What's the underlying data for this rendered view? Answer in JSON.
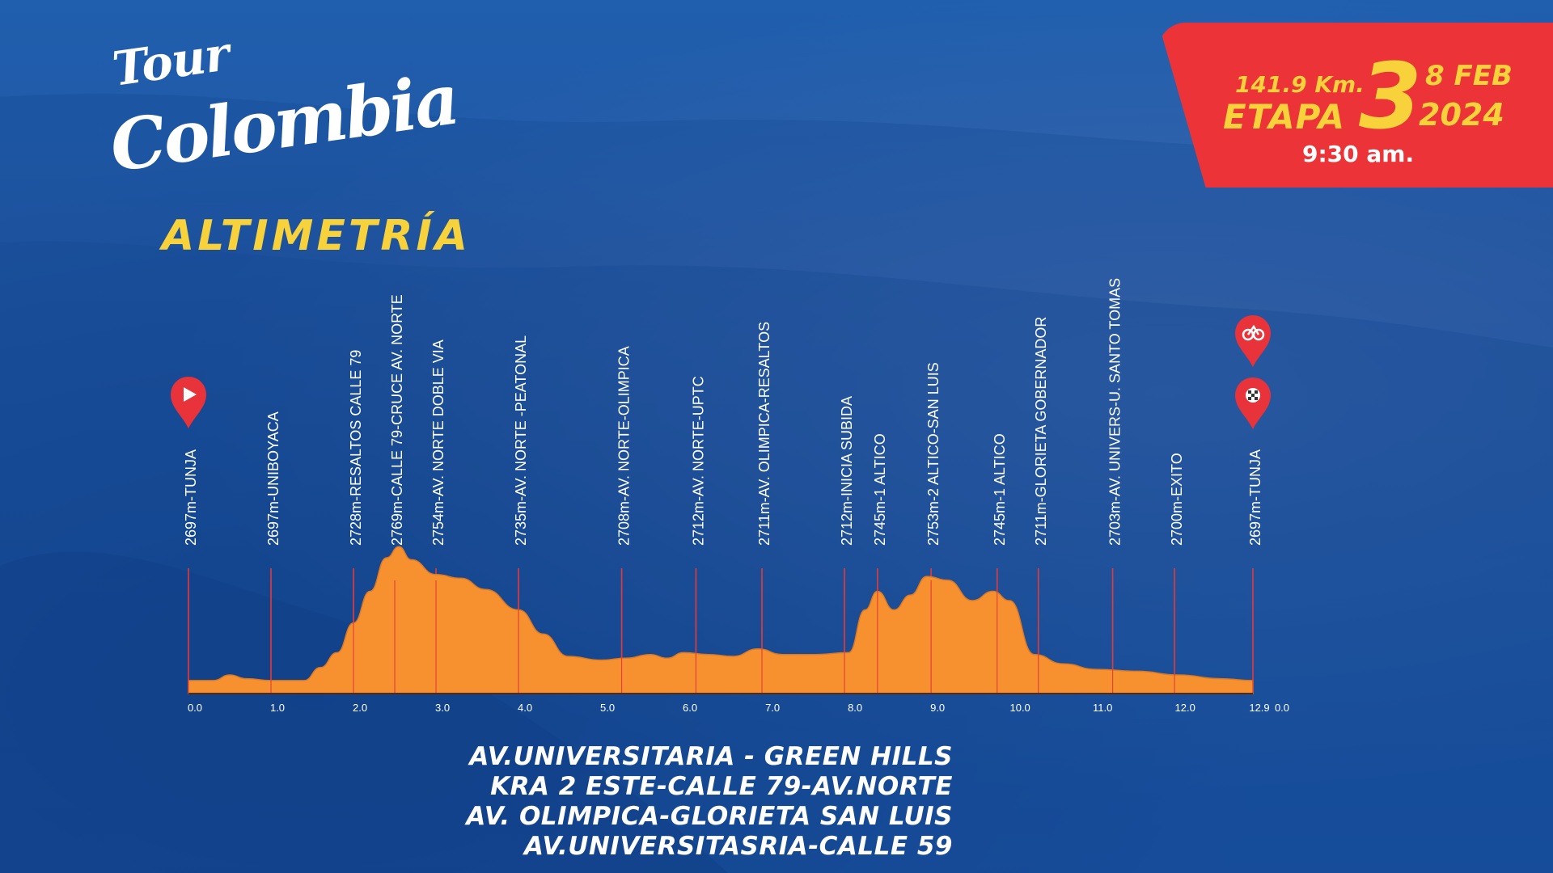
{
  "logo": {
    "line1": "Tour",
    "line2": "Colombia"
  },
  "stage": {
    "distance": "141.9 Km.",
    "label": "ETAPA",
    "number": "3",
    "date": "8 FEB",
    "year": "2024",
    "time": "9:30 am."
  },
  "section_title": "ALTIMETRÍA",
  "colors": {
    "profile_fill": "#f7902f",
    "marker_line": "#e23a3a",
    "badge_bg": "#ec3337",
    "accent_yellow": "#f7d23b",
    "pin_red": "#e8333a"
  },
  "chart_data": {
    "type": "area",
    "xlim": [
      0,
      12.9
    ],
    "x_ticks": [
      "0.0",
      "1.0",
      "2.0",
      "3.0",
      "4.0",
      "5.0",
      "6.0",
      "7.0",
      "8.0",
      "9.0",
      "10.0",
      "11.0",
      "12.0",
      "12.9",
      "0.0"
    ],
    "profile": {
      "x": [
        0,
        0.3,
        0.5,
        0.7,
        1.0,
        1.4,
        1.6,
        1.8,
        2.0,
        2.2,
        2.4,
        2.55,
        2.7,
        3.0,
        3.3,
        3.6,
        4.0,
        4.3,
        4.6,
        5.0,
        5.3,
        5.6,
        5.8,
        6.0,
        6.3,
        6.6,
        6.9,
        7.2,
        7.6,
        8.0,
        8.2,
        8.35,
        8.55,
        8.75,
        8.95,
        9.2,
        9.5,
        9.75,
        9.95,
        10.25,
        10.6,
        11.0,
        11.5,
        12.0,
        12.5,
        12.9
      ],
      "elevation": [
        2697,
        2697,
        2700,
        2698,
        2697,
        2697,
        2704,
        2712,
        2728,
        2745,
        2763,
        2769,
        2762,
        2754,
        2752,
        2746,
        2735,
        2722,
        2710,
        2708,
        2709,
        2711,
        2709,
        2712,
        2711,
        2710,
        2714,
        2711,
        2711,
        2712,
        2735,
        2745,
        2735,
        2743,
        2753,
        2751,
        2740,
        2745,
        2740,
        2711,
        2706,
        2703,
        2702,
        2700,
        2698,
        2697
      ]
    },
    "markers": [
      {
        "km": 0.0,
        "label": "2697m-TUNJA"
      },
      {
        "km": 1.0,
        "label": "2697m-UNIBOYACA"
      },
      {
        "km": 2.0,
        "label": "2728m-RESALTOS CALLE 79"
      },
      {
        "km": 2.5,
        "label": "2769m-CALLE 79-CRUCE AV. NORTE"
      },
      {
        "km": 3.0,
        "label": "2754m-AV. NORTE DOBLE VIA"
      },
      {
        "km": 4.0,
        "label": "2735m-AV. NORTE -PEATONAL"
      },
      {
        "km": 5.25,
        "label": "2708m-AV. NORTE-OLIMPICA"
      },
      {
        "km": 6.15,
        "label": "2712m-AV. NORTE-UPTC"
      },
      {
        "km": 6.95,
        "label": "2711m-AV. OLIMPICA-RESALTOS"
      },
      {
        "km": 7.95,
        "label": "2712m-INICIA SUBIDA"
      },
      {
        "km": 8.35,
        "label": "2745m-1 ALTICO"
      },
      {
        "km": 9.0,
        "label": "2753m-2 ALTICO-SAN LUIS"
      },
      {
        "km": 9.8,
        "label": "2745m-1 ALTICO"
      },
      {
        "km": 10.3,
        "label": "2711m-GLORIETA GOBERNADOR"
      },
      {
        "km": 11.2,
        "label": "2703m-AV. UNIVERS-U. SANTO TOMAS"
      },
      {
        "km": 11.95,
        "label": "2700m-EXITO"
      },
      {
        "km": 12.9,
        "label": "2697m-TUNJA"
      }
    ]
  },
  "route_lines": [
    "AV.UNIVERSITARIA - GREEN HILLS",
    "KRA 2 ESTE-CALLE 79-AV.NORTE",
    "AV. OLIMPICA-GLORIETA SAN LUIS",
    "AV.UNIVERSITASRIA-CALLE  59"
  ]
}
